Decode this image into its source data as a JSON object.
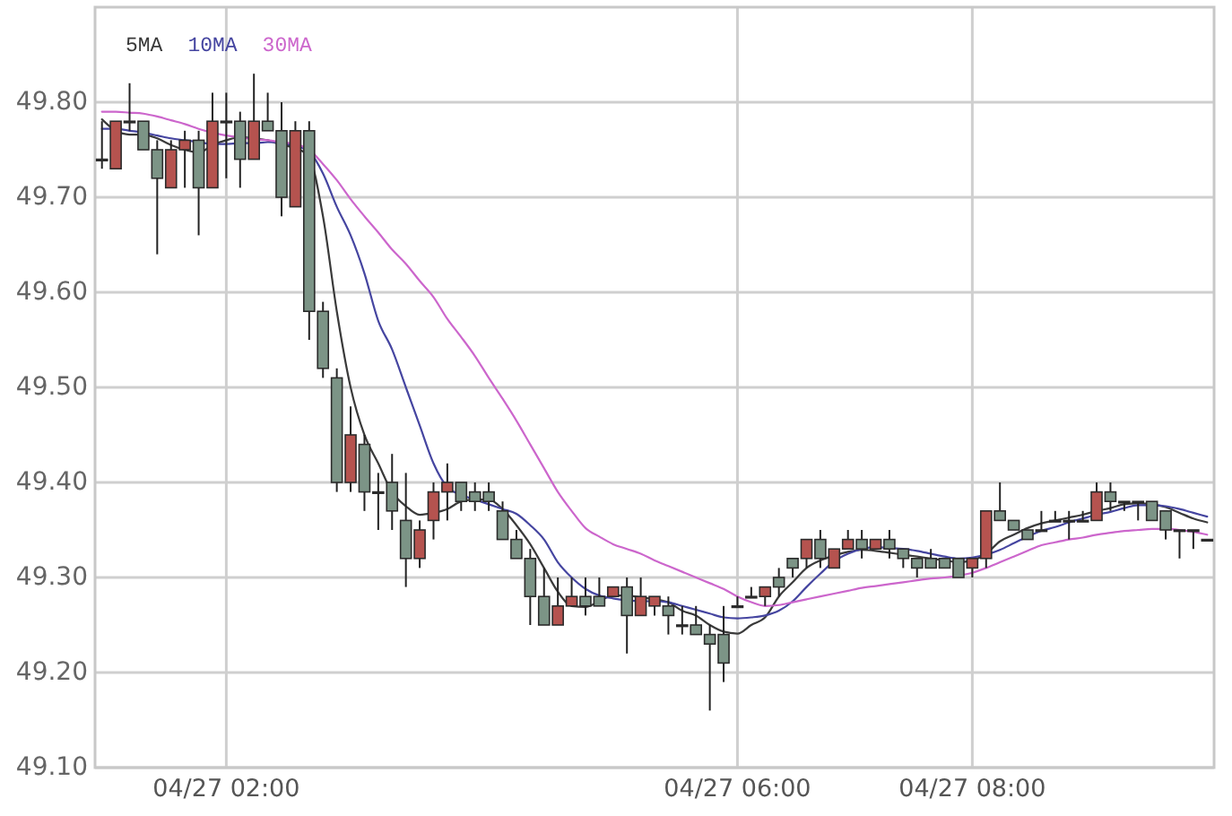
{
  "chart_data": {
    "type": "candlestick",
    "categories": [
      null,
      null,
      null,
      null,
      null,
      null,
      null,
      null,
      null,
      "04/27 02:00",
      null,
      null,
      null,
      null,
      null,
      null,
      null,
      null,
      null,
      null,
      null,
      null,
      null,
      null,
      null,
      null,
      null,
      null,
      null,
      null,
      null,
      null,
      null,
      null,
      null,
      null,
      null,
      null,
      null,
      null,
      null,
      null,
      null,
      null,
      null,
      null,
      "04/27 06:00",
      null,
      null,
      null,
      null,
      null,
      null,
      null,
      null,
      null,
      null,
      null,
      null,
      null,
      null,
      null,
      null,
      "04/27 08:00",
      null,
      null,
      null,
      null,
      null,
      null,
      null,
      null,
      null,
      null,
      null,
      null,
      null,
      null,
      null,
      null,
      null
    ],
    "ohlc": [
      [
        49.74,
        49.78,
        49.73,
        49.74
      ],
      [
        49.73,
        49.78,
        49.73,
        49.78
      ],
      [
        49.78,
        49.82,
        49.77,
        49.78
      ],
      [
        49.78,
        49.78,
        49.75,
        49.75
      ],
      [
        49.75,
        49.76,
        49.64,
        49.72
      ],
      [
        49.71,
        49.76,
        49.71,
        49.75
      ],
      [
        49.75,
        49.77,
        49.71,
        49.76
      ],
      [
        49.76,
        49.77,
        49.66,
        49.71
      ],
      [
        49.71,
        49.81,
        49.71,
        49.78
      ],
      [
        49.78,
        49.81,
        49.72,
        49.78
      ],
      [
        49.78,
        49.79,
        49.71,
        49.74
      ],
      [
        49.74,
        49.83,
        49.74,
        49.78
      ],
      [
        49.78,
        49.81,
        49.77,
        49.77
      ],
      [
        49.77,
        49.8,
        49.68,
        49.7
      ],
      [
        49.69,
        49.78,
        49.69,
        49.77
      ],
      [
        49.77,
        49.78,
        49.55,
        49.58
      ],
      [
        49.58,
        49.59,
        49.51,
        49.52
      ],
      [
        49.51,
        49.52,
        49.39,
        49.4
      ],
      [
        49.4,
        49.48,
        49.39,
        49.45
      ],
      [
        49.44,
        49.45,
        49.37,
        49.39
      ],
      [
        49.39,
        49.41,
        49.35,
        49.39
      ],
      [
        49.4,
        49.43,
        49.35,
        49.37
      ],
      [
        49.36,
        49.41,
        49.29,
        49.32
      ],
      [
        49.32,
        49.36,
        49.31,
        49.35
      ],
      [
        49.36,
        49.4,
        49.34,
        49.39
      ],
      [
        49.39,
        49.42,
        49.36,
        49.4
      ],
      [
        49.4,
        49.4,
        49.37,
        49.38
      ],
      [
        49.39,
        49.4,
        49.37,
        49.38
      ],
      [
        49.39,
        49.4,
        49.37,
        49.38
      ],
      [
        49.37,
        49.38,
        49.34,
        49.34
      ],
      [
        49.34,
        49.35,
        49.32,
        49.32
      ],
      [
        49.32,
        49.33,
        49.25,
        49.28
      ],
      [
        49.28,
        49.31,
        49.25,
        49.25
      ],
      [
        49.25,
        49.3,
        49.25,
        49.27
      ],
      [
        49.27,
        49.3,
        49.27,
        49.28
      ],
      [
        49.28,
        49.3,
        49.26,
        49.27
      ],
      [
        49.28,
        49.3,
        49.27,
        49.27
      ],
      [
        49.28,
        49.29,
        49.28,
        49.29
      ],
      [
        49.29,
        49.3,
        49.22,
        49.26
      ],
      [
        49.26,
        49.3,
        49.26,
        49.28
      ],
      [
        49.27,
        49.28,
        49.26,
        49.28
      ],
      [
        49.27,
        49.28,
        49.24,
        49.26
      ],
      [
        49.25,
        49.27,
        49.24,
        49.25
      ],
      [
        49.25,
        49.27,
        49.24,
        49.24
      ],
      [
        49.24,
        49.25,
        49.16,
        49.23
      ],
      [
        49.24,
        49.27,
        49.19,
        49.21
      ],
      [
        49.27,
        49.28,
        49.27,
        49.27
      ],
      [
        49.28,
        49.29,
        49.28,
        49.28
      ],
      [
        49.28,
        49.29,
        49.27,
        49.29
      ],
      [
        49.3,
        49.31,
        49.28,
        49.29
      ],
      [
        49.32,
        49.32,
        49.3,
        49.31
      ],
      [
        49.32,
        49.34,
        49.31,
        49.34
      ],
      [
        49.34,
        49.35,
        49.31,
        49.32
      ],
      [
        49.31,
        49.33,
        49.31,
        49.33
      ],
      [
        49.33,
        49.35,
        49.33,
        49.34
      ],
      [
        49.34,
        49.35,
        49.32,
        49.33
      ],
      [
        49.33,
        49.34,
        49.33,
        49.34
      ],
      [
        49.34,
        49.35,
        49.32,
        49.33
      ],
      [
        49.33,
        49.33,
        49.31,
        49.32
      ],
      [
        49.32,
        49.32,
        49.3,
        49.31
      ],
      [
        49.32,
        49.33,
        49.31,
        49.31
      ],
      [
        49.32,
        49.32,
        49.31,
        49.31
      ],
      [
        49.32,
        49.32,
        49.3,
        49.3
      ],
      [
        49.31,
        49.32,
        49.3,
        49.32
      ],
      [
        49.32,
        49.37,
        49.31,
        49.37
      ],
      [
        49.37,
        49.4,
        49.36,
        49.36
      ],
      [
        49.36,
        49.36,
        49.35,
        49.35
      ],
      [
        49.35,
        49.35,
        49.34,
        49.34
      ],
      [
        49.35,
        49.37,
        49.35,
        49.35
      ],
      [
        49.36,
        49.37,
        49.36,
        49.36
      ],
      [
        49.36,
        49.37,
        49.34,
        49.36
      ],
      [
        49.36,
        49.37,
        49.36,
        49.36
      ],
      [
        49.36,
        49.4,
        49.36,
        49.39
      ],
      [
        49.39,
        49.4,
        49.37,
        49.38
      ],
      [
        49.38,
        49.38,
        49.37,
        49.38
      ],
      [
        49.38,
        49.38,
        49.36,
        49.38
      ],
      [
        49.38,
        49.38,
        49.36,
        49.36
      ],
      [
        49.37,
        49.37,
        49.34,
        49.35
      ],
      [
        49.35,
        49.35,
        49.32,
        49.35
      ],
      [
        49.35,
        49.35,
        49.33,
        49.35
      ],
      [
        49.34,
        49.34,
        49.34,
        49.34
      ]
    ],
    "colors": [
      "#333333",
      "#b5534f",
      "#333333",
      "#7c9486",
      "#7c9486",
      "#b5534f",
      "#b5534f",
      "#7c9486",
      "#b5534f",
      "#333333",
      "#7c9486",
      "#b5534f",
      "#7c9486",
      "#7c9486",
      "#b5534f",
      "#7c9486",
      "#7c9486",
      "#7c9486",
      "#b5534f",
      "#7c9486",
      "#333333",
      "#7c9486",
      "#7c9486",
      "#b5534f",
      "#b5534f",
      "#b5534f",
      "#7c9486",
      "#7c9486",
      "#7c9486",
      "#7c9486",
      "#7c9486",
      "#7c9486",
      "#7c9486",
      "#b5534f",
      "#b5534f",
      "#7c9486",
      "#7c9486",
      "#b5534f",
      "#7c9486",
      "#b5534f",
      "#b5534f",
      "#7c9486",
      "#333333",
      "#7c9486",
      "#7c9486",
      "#7c9486",
      "#333333",
      "#333333",
      "#b5534f",
      "#7c9486",
      "#7c9486",
      "#b5534f",
      "#7c9486",
      "#b5534f",
      "#b5534f",
      "#7c9486",
      "#b5534f",
      "#7c9486",
      "#7c9486",
      "#7c9486",
      "#7c9486",
      "#7c9486",
      "#7c9486",
      "#b5534f",
      "#b5534f",
      "#7c9486",
      "#7c9486",
      "#7c9486",
      "#333333",
      "#333333",
      "#333333",
      "#333333",
      "#b5534f",
      "#7c9486",
      "#333333",
      "#333333",
      "#7c9486",
      "#7c9486",
      "#333333",
      "#333333",
      "#333333"
    ],
    "series": [
      {
        "type": "line",
        "name": "5MA",
        "color": "#3a3a3a",
        "values": [
          49.782,
          49.77,
          49.766,
          49.766,
          49.762,
          49.755,
          49.75,
          49.747,
          49.755,
          49.76,
          49.763,
          49.762,
          49.76,
          49.755,
          49.752,
          49.742,
          49.68,
          49.58,
          49.5,
          49.45,
          49.42,
          49.39,
          49.375,
          49.366,
          49.368,
          49.372,
          49.38,
          49.382,
          49.382,
          49.372,
          49.355,
          49.335,
          49.31,
          49.285,
          49.27,
          49.269,
          49.275,
          49.281,
          49.281,
          49.279,
          49.277,
          49.274,
          49.265,
          49.26,
          49.25,
          49.243,
          49.241,
          49.25,
          49.258,
          49.28,
          49.295,
          49.31,
          49.318,
          49.323,
          49.327,
          49.329,
          49.328,
          49.326,
          49.324,
          49.322,
          49.32,
          49.318,
          49.316,
          49.318,
          49.325,
          49.338,
          49.345,
          49.352,
          49.357,
          49.36,
          49.363,
          49.366,
          49.37,
          49.373,
          49.377,
          49.378,
          49.377,
          49.374,
          49.368,
          49.362,
          49.358
        ]
      },
      {
        "type": "line",
        "name": "10MA",
        "color": "#4545a0",
        "values": [
          49.772,
          49.772,
          49.77,
          49.768,
          49.765,
          49.762,
          49.76,
          49.758,
          49.756,
          49.756,
          49.757,
          49.757,
          49.758,
          49.757,
          49.754,
          49.748,
          49.725,
          49.69,
          49.66,
          49.62,
          49.57,
          49.54,
          49.5,
          49.46,
          49.42,
          49.395,
          49.387,
          49.382,
          49.377,
          49.372,
          49.367,
          49.355,
          49.34,
          49.316,
          49.3,
          49.288,
          49.281,
          49.278,
          49.276,
          49.275,
          49.275,
          49.274,
          49.27,
          49.266,
          49.262,
          49.258,
          49.257,
          49.258,
          49.26,
          49.265,
          49.275,
          49.29,
          49.304,
          49.317,
          49.325,
          49.33,
          49.332,
          49.331,
          49.33,
          49.328,
          49.325,
          49.322,
          49.32,
          49.321,
          49.324,
          49.329,
          49.336,
          49.343,
          49.349,
          49.353,
          49.358,
          49.362,
          49.366,
          49.369,
          49.373,
          49.376,
          49.376,
          49.375,
          49.372,
          49.368,
          49.364
        ]
      },
      {
        "type": "line",
        "name": "30MA",
        "color": "#cc66cc",
        "values": [
          49.79,
          49.79,
          49.789,
          49.788,
          49.785,
          49.781,
          49.777,
          49.772,
          49.768,
          49.765,
          49.763,
          49.761,
          49.76,
          49.758,
          49.756,
          49.75,
          49.735,
          49.718,
          49.698,
          49.68,
          49.663,
          49.645,
          49.63,
          49.612,
          49.595,
          49.572,
          49.553,
          49.533,
          49.51,
          49.488,
          49.465,
          49.44,
          49.415,
          49.39,
          49.37,
          49.352,
          49.343,
          49.335,
          49.33,
          49.325,
          49.318,
          49.312,
          49.306,
          49.3,
          49.294,
          49.288,
          49.28,
          49.274,
          49.27,
          49.271,
          49.274,
          49.277,
          49.28,
          49.283,
          49.286,
          49.289,
          49.291,
          49.293,
          49.295,
          49.297,
          49.299,
          49.3,
          49.302,
          49.305,
          49.31,
          49.316,
          49.322,
          49.328,
          49.334,
          49.337,
          49.34,
          49.342,
          49.345,
          49.347,
          49.349,
          49.35,
          49.351,
          49.351,
          49.35,
          49.348,
          49.345
        ]
      }
    ],
    "ylim": [
      49.1,
      49.9
    ],
    "yticks": [
      {
        "value": 49.1,
        "label": "49.10"
      },
      {
        "value": 49.2,
        "label": "49.20"
      },
      {
        "value": 49.3,
        "label": "49.30"
      },
      {
        "value": 49.4,
        "label": "49.40"
      },
      {
        "value": 49.5,
        "label": "49.50"
      },
      {
        "value": 49.6,
        "label": "49.60"
      },
      {
        "value": 49.7,
        "label": "49.70"
      },
      {
        "value": 49.8,
        "label": "49.80"
      }
    ],
    "grid": true,
    "legend": "top left"
  }
}
